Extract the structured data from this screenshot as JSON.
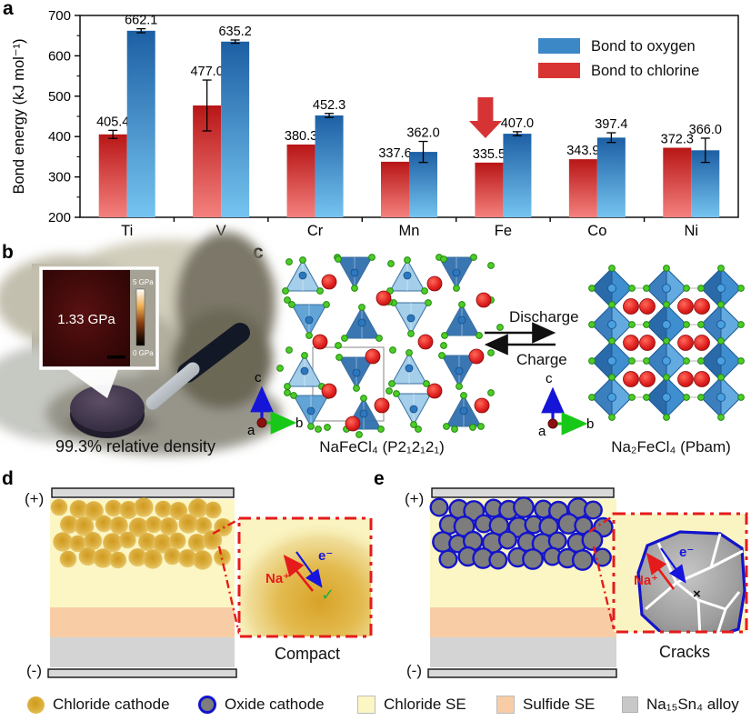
{
  "figure": {
    "panels": {
      "a": "a",
      "b": "b",
      "c": "c",
      "d": "d",
      "e": "e"
    }
  },
  "chart_data": {
    "type": "bar",
    "title": "",
    "xlabel": "",
    "ylabel": "Bond energy (kJ mol⁻¹)",
    "ylim": [
      200,
      700
    ],
    "yticks": [
      200,
      300,
      400,
      500,
      600,
      700
    ],
    "grid": false,
    "legend_position": "top-right",
    "categories": [
      "Ti",
      "V",
      "Cr",
      "Mn",
      "Fe",
      "Co",
      "Ni"
    ],
    "series": [
      {
        "name": "Bond to chlorine",
        "side": "left",
        "color_top": "#b81616",
        "color_bottom": "#f4817e",
        "values": [
          405.4,
          477.0,
          380.3,
          337.6,
          335.5,
          343.9,
          372.3
        ],
        "errors": [
          10,
          63,
          0,
          0,
          0,
          0,
          0
        ]
      },
      {
        "name": "Bond to oxygen",
        "side": "right",
        "color_top": "#1d5fa4",
        "color_bottom": "#75c4f0",
        "values": [
          662.1,
          635.2,
          452.3,
          362.0,
          407.0,
          397.4,
          366.0
        ],
        "errors": [
          5,
          4,
          5,
          26,
          5,
          12,
          30
        ]
      }
    ],
    "legend": [
      {
        "label": "Bond to oxygen",
        "color": "#3c87c6"
      },
      {
        "label": "Bond to chlorine",
        "color": "#d93434"
      }
    ],
    "annotation": {
      "type": "down-arrow",
      "category": "Fe",
      "series": "Bond to chlorine",
      "color": "#d63434"
    }
  },
  "panel_b": {
    "inset_value": "1.33 GPa",
    "scale_max": "5 GPa",
    "scale_min": "0 GPa",
    "caption": "99.3% relative density"
  },
  "panel_c": {
    "left_label": "NaFeCl₄ (P2₁2₁2₁)",
    "right_label": "Na₂FeCl₄ (Pbam)",
    "forward": "Discharge",
    "backward": "Charge",
    "axes": {
      "up": "c",
      "right": "b",
      "origin": "a"
    },
    "atom_colors": {
      "fe_polyhedra": "#3f8fd0",
      "na": "#e02020",
      "cl": "#4ecb28"
    }
  },
  "panel_d": {
    "positive": "(+)",
    "negative": "(-)",
    "ion": "Na⁺",
    "electron": "e⁻",
    "check": "✓",
    "caption": "Compact"
  },
  "panel_e": {
    "positive": "(+)",
    "negative": "(-)",
    "ion": "Na⁺",
    "electron": "e⁻",
    "cross": "×",
    "caption": "Cracks"
  },
  "legend": {
    "items": [
      {
        "label": "Chloride cathode",
        "swatch": "gold-circle",
        "color": "#ddab2e"
      },
      {
        "label": "Oxide cathode",
        "swatch": "gray-circle-blue-ring",
        "color": "#7d7d7d",
        "ring": "#1313cc"
      },
      {
        "label": "Chloride SE",
        "swatch": "square",
        "color": "#fbf6c3"
      },
      {
        "label": "Sulfide SE",
        "swatch": "square",
        "color": "#f8cda6"
      },
      {
        "label": "Na₁₅Sn₄ alloy",
        "swatch": "square",
        "color": "#c8c8c8"
      }
    ]
  }
}
